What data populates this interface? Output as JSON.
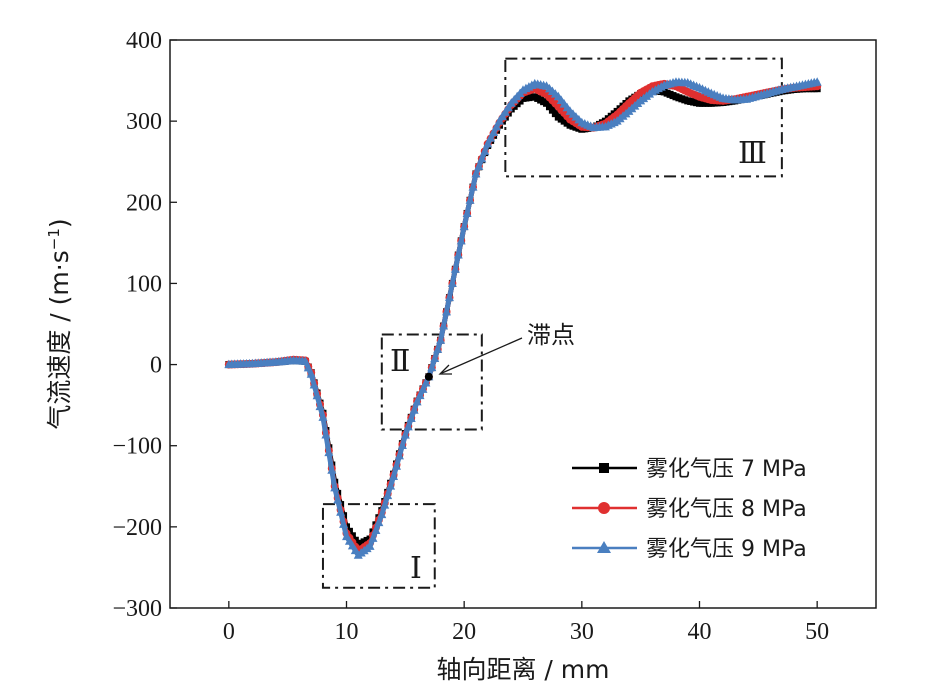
{
  "chart_data": {
    "type": "line",
    "title": "",
    "xlabel": "轴向距离 / mm",
    "ylabel_main": "气流速度 / (m·s",
    "ylabel_sup": "−1",
    "ylabel_close": ")",
    "xlim": [
      -5,
      55
    ],
    "ylim": [
      -300,
      400
    ],
    "xticks": [
      0,
      10,
      20,
      30,
      40,
      50
    ],
    "yticks": [
      -300,
      -200,
      -100,
      0,
      100,
      200,
      300,
      400
    ],
    "xtick_labels": [
      "0",
      "10",
      "20",
      "30",
      "40",
      "50"
    ],
    "ytick_labels": [
      "−300",
      "−200",
      "−100",
      "0",
      "100",
      "200",
      "300",
      "400"
    ],
    "grid": false,
    "legend_position": "bottom-right",
    "series": [
      {
        "name": "雾化气压 7 MPa",
        "color": "#000000",
        "marker": "square",
        "x": [
          0,
          2,
          4,
          5.5,
          6.5,
          7,
          8,
          9,
          10,
          11,
          12,
          13,
          14,
          15,
          16,
          17,
          18,
          19,
          20,
          21,
          22,
          23,
          24,
          25,
          26,
          27,
          28,
          29,
          30,
          31,
          32,
          33,
          34,
          35,
          36,
          37,
          38,
          39,
          40,
          41,
          42,
          43,
          44,
          45,
          46,
          47,
          48,
          49,
          50
        ],
        "values": [
          0,
          1,
          3,
          5,
          4,
          -10,
          -60,
          -145,
          -200,
          -222,
          -215,
          -180,
          -135,
          -85,
          -45,
          -15,
          30,
          100,
          170,
          235,
          270,
          295,
          315,
          328,
          330,
          322,
          305,
          295,
          290,
          292,
          300,
          312,
          325,
          334,
          338,
          336,
          330,
          325,
          322,
          322,
          323,
          325,
          328,
          331,
          334,
          337,
          339,
          340,
          340
        ]
      },
      {
        "name": "雾化气压 8 MPa",
        "color": "#e03030",
        "marker": "circle",
        "x": [
          0,
          2,
          4,
          5.5,
          6.5,
          7,
          8,
          9,
          10,
          11,
          12,
          13,
          14,
          15,
          16,
          17,
          18,
          19,
          20,
          21,
          22,
          23,
          24,
          25,
          26,
          27,
          28,
          29,
          30,
          31,
          32,
          33,
          34,
          35,
          36,
          37,
          38,
          39,
          40,
          41,
          42,
          43,
          44,
          45,
          46,
          47,
          48,
          49,
          50
        ],
        "values": [
          0,
          1,
          3,
          6,
          5,
          -10,
          -62,
          -150,
          -208,
          -230,
          -220,
          -182,
          -136,
          -86,
          -45,
          -15,
          30,
          100,
          170,
          235,
          272,
          298,
          320,
          335,
          340,
          333,
          318,
          302,
          293,
          292,
          297,
          308,
          322,
          335,
          343,
          346,
          343,
          336,
          330,
          326,
          325,
          327,
          330,
          333,
          336,
          339,
          341,
          342,
          343
        ]
      },
      {
        "name": "雾化气压 9 MPa",
        "color": "#4a7fc0",
        "marker": "triangle",
        "x": [
          0,
          2,
          4,
          5.5,
          6.5,
          7,
          8,
          9,
          10,
          11,
          12,
          13,
          14,
          15,
          16,
          17,
          18,
          19,
          20,
          21,
          22,
          23,
          24,
          25,
          26,
          27,
          28,
          29,
          30,
          31,
          32,
          33,
          34,
          35,
          36,
          37,
          38,
          39,
          40,
          41,
          42,
          43,
          44,
          45,
          46,
          47,
          48,
          49,
          50
        ],
        "values": [
          0,
          1,
          3,
          5,
          4,
          -12,
          -65,
          -152,
          -212,
          -235,
          -224,
          -185,
          -138,
          -87,
          -46,
          -15,
          30,
          100,
          170,
          235,
          272,
          300,
          322,
          338,
          346,
          343,
          330,
          312,
          298,
          292,
          293,
          300,
          312,
          325,
          336,
          344,
          348,
          347,
          341,
          334,
          328,
          326,
          327,
          331,
          335,
          339,
          342,
          345,
          348
        ]
      }
    ],
    "annotations": {
      "region_1": "Ⅰ",
      "region_2": "Ⅱ",
      "region_3": "Ⅲ",
      "stagnation_label": "滞点",
      "stagnation_point": {
        "x": 17,
        "y": -15
      }
    },
    "region_boxes": [
      {
        "name": "Ⅰ",
        "x": [
          8,
          17.5
        ],
        "y": [
          -275,
          -172
        ]
      },
      {
        "name": "Ⅱ",
        "x": [
          13,
          21.5
        ],
        "y": [
          -80,
          37
        ]
      },
      {
        "name": "Ⅲ",
        "x": [
          23.5,
          47
        ],
        "y": [
          232,
          377
        ]
      }
    ]
  }
}
